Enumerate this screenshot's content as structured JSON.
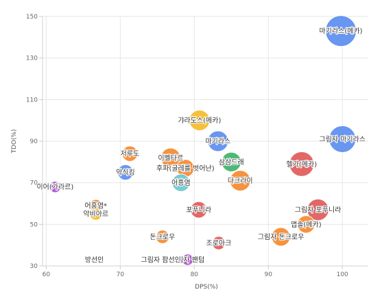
{
  "chart_data": {
    "type": "scatter",
    "xlabel": "DPS(%)",
    "ylabel": "TDO(%)",
    "xlim": [
      59.5,
      103.5
    ],
    "ylim": [
      30,
      150
    ],
    "xticks": [
      60,
      70,
      80,
      90,
      100
    ],
    "yticks": [
      30,
      50,
      70,
      90,
      110,
      130,
      150
    ],
    "grid": true,
    "colors": {
      "blue": "#5b8def",
      "yellow": "#f4bc2c",
      "orange": "#f58a2e",
      "red": "#e05b5b",
      "green": "#3fb36b",
      "teal": "#6fc8cf",
      "purple": "#b24fd1"
    },
    "points": [
      {
        "label": "마기라스(메카)",
        "x": 99.8,
        "y": 143,
        "size": 3.0,
        "color": "blue"
      },
      {
        "label": "그림자 마기라스",
        "x": 100.0,
        "y": 91,
        "size": 2.6,
        "color": "blue"
      },
      {
        "label": "갸라도스(메카)",
        "x": 80.7,
        "y": 100,
        "size": 2.0,
        "color": "yellow"
      },
      {
        "label": "마기라스",
        "x": 83.2,
        "y": 90,
        "size": 2.0,
        "color": "blue"
      },
      {
        "label": "헬가(메카)",
        "x": 94.5,
        "y": 79,
        "size": 2.4,
        "color": "red"
      },
      {
        "label": "삼삼드래",
        "x": 85.0,
        "y": 80,
        "size": 1.9,
        "color": "green"
      },
      {
        "label": "다크라이",
        "x": 86.2,
        "y": 71,
        "size": 2.0,
        "color": "orange"
      },
      {
        "label": "이벨타르",
        "x": 76.8,
        "y": 82,
        "size": 1.9,
        "color": "orange"
      },
      {
        "label": "후파(굴레를 벗어난)",
        "x": 78.8,
        "y": 77,
        "size": 1.7,
        "color": "orange"
      },
      {
        "label": "저루도",
        "x": 71.3,
        "y": 84,
        "size": 1.5,
        "color": "orange"
      },
      {
        "label": "악식킹",
        "x": 70.7,
        "y": 75,
        "size": 1.5,
        "color": "blue"
      },
      {
        "label": "어흥염",
        "x": 78.2,
        "y": 70,
        "size": 1.7,
        "color": "teal"
      },
      {
        "label": "이어(가라르)",
        "x": 61.2,
        "y": 68,
        "size": 1.1,
        "color": "purple"
      },
      {
        "label": "그림자 포푸니라",
        "x": 96.7,
        "y": 57,
        "size": 2.1,
        "color": "red"
      },
      {
        "label": "포푸니라",
        "x": 80.6,
        "y": 57,
        "size": 1.6,
        "color": "red"
      },
      {
        "label": "앱솔(메카)",
        "x": 95.1,
        "y": 50,
        "size": 1.7,
        "color": "orange"
      },
      {
        "label": "어흥염*",
        "x": 66.7,
        "y": 59,
        "size": 1.2,
        "color": "orange"
      },
      {
        "label": "악비아르",
        "x": 66.7,
        "y": 55,
        "size": 1.2,
        "color": "yellow"
      },
      {
        "label": "그림자 돈크로우",
        "x": 91.7,
        "y": 44,
        "size": 1.8,
        "color": "orange"
      },
      {
        "label": "돈크로우",
        "x": 75.7,
        "y": 44,
        "size": 1.3,
        "color": "orange"
      },
      {
        "label": "조로아크",
        "x": 83.3,
        "y": 41,
        "size": 1.3,
        "color": "red"
      },
      {
        "label": "그림자 팬텀",
        "x": 79.1,
        "y": 33,
        "size": 1.1,
        "color": "purple"
      }
    ],
    "annotations": [
      "그림자 팜선인",
      "방선인"
    ]
  }
}
